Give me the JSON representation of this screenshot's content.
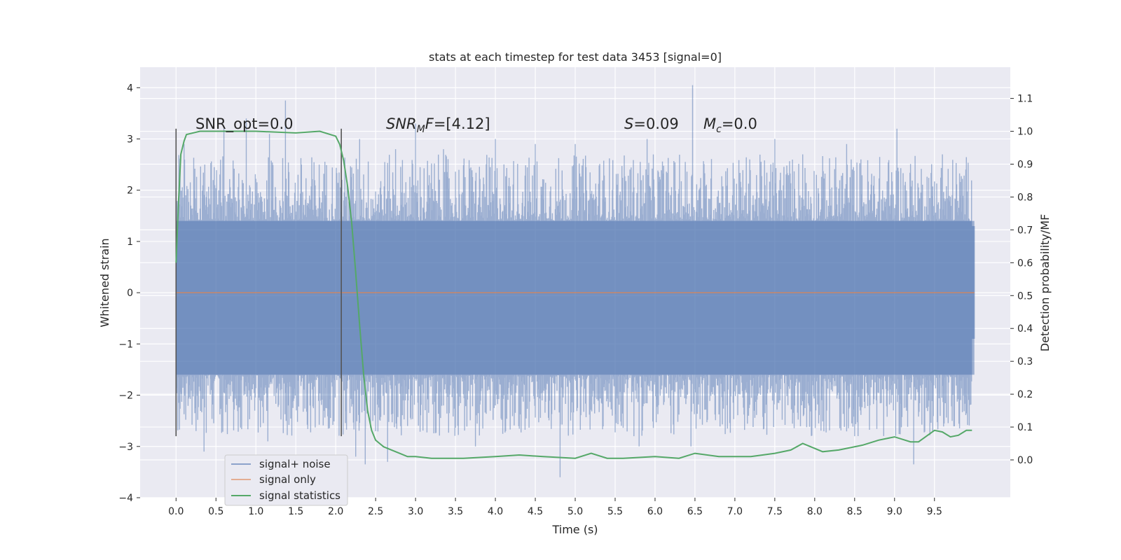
{
  "chart_data": {
    "type": "line",
    "title": "stats at each timestep for test data 3453 [signal=0]",
    "xlabel": "Time (s)",
    "ylabel": "Whitened strain",
    "y2label": "Detection probability/MF",
    "xlim": [
      -0.45,
      10.45
    ],
    "ylim": [
      -4,
      4.4
    ],
    "y2lim": [
      -0.115,
      1.195
    ],
    "x_ticks": [
      "0.0",
      "0.5",
      "1.0",
      "1.5",
      "2.0",
      "2.5",
      "3.0",
      "3.5",
      "4.0",
      "4.5",
      "5.0",
      "5.5",
      "6.0",
      "6.5",
      "7.0",
      "7.5",
      "8.0",
      "8.5",
      "9.0",
      "9.5"
    ],
    "x_tick_values": [
      0,
      0.5,
      1,
      1.5,
      2,
      2.5,
      3,
      3.5,
      4,
      4.5,
      5,
      5.5,
      6,
      6.5,
      7,
      7.5,
      8,
      8.5,
      9,
      9.5
    ],
    "y_ticks": [
      "−4",
      "−3",
      "−2",
      "−1",
      "0",
      "1",
      "2",
      "3",
      "4"
    ],
    "y_tick_values": [
      -4,
      -3,
      -2,
      -1,
      0,
      1,
      2,
      3,
      4
    ],
    "y2_ticks": [
      "0.0",
      "0.1",
      "0.2",
      "0.3",
      "0.4",
      "0.5",
      "0.6",
      "0.7",
      "0.8",
      "0.9",
      "1.0",
      "1.1"
    ],
    "y2_tick_values": [
      0,
      0.1,
      0.2,
      0.3,
      0.4,
      0.5,
      0.6,
      0.7,
      0.8,
      0.9,
      1.0,
      1.1
    ],
    "grid": true,
    "legend_position": "lower-left",
    "colors": {
      "noise": "#4c72b0",
      "signal": "#dd8452",
      "statistics": "#55a868",
      "markers": "#555555",
      "background": "#eaeaf2",
      "grid": "#ffffff"
    },
    "series": [
      {
        "name": "signal+ noise",
        "axis": "left",
        "kind": "noise-band",
        "x_range": [
          0,
          10
        ],
        "core_range": [
          -1.6,
          1.4
        ],
        "peaks": [
          {
            "x": 0.0,
            "y": 1.5
          },
          {
            "x": 0.1,
            "y": 2.9
          },
          {
            "x": 0.36,
            "y": 2.5
          },
          {
            "x": 0.6,
            "y": 3.2
          },
          {
            "x": 0.88,
            "y": 3.4
          },
          {
            "x": 1.17,
            "y": 3.1
          },
          {
            "x": 1.37,
            "y": 3.75
          },
          {
            "x": 1.7,
            "y": 2.6
          },
          {
            "x": 2.3,
            "y": 3.0
          },
          {
            "x": 2.75,
            "y": 2.8
          },
          {
            "x": 3.0,
            "y": 3.3
          },
          {
            "x": 3.35,
            "y": 2.8
          },
          {
            "x": 4.0,
            "y": 3.0
          },
          {
            "x": 4.5,
            "y": 2.9
          },
          {
            "x": 5.0,
            "y": 2.9
          },
          {
            "x": 5.9,
            "y": 3.0
          },
          {
            "x": 6.47,
            "y": 4.05
          },
          {
            "x": 7.5,
            "y": 3.0
          },
          {
            "x": 7.85,
            "y": 2.7
          },
          {
            "x": 8.4,
            "y": 2.9
          },
          {
            "x": 9.03,
            "y": 3.2
          },
          {
            "x": 9.6,
            "y": 2.7
          },
          {
            "x": 9.97,
            "y": 1.3
          }
        ],
        "troughs": [
          {
            "x": 0.0,
            "y": -0.8
          },
          {
            "x": 0.35,
            "y": -3.1
          },
          {
            "x": 1.15,
            "y": -2.9
          },
          {
            "x": 2.25,
            "y": -3.2
          },
          {
            "x": 2.37,
            "y": -3.35
          },
          {
            "x": 2.65,
            "y": -3.3
          },
          {
            "x": 3.75,
            "y": -3.0
          },
          {
            "x": 4.81,
            "y": -3.6
          },
          {
            "x": 5.8,
            "y": -3.0
          },
          {
            "x": 6.45,
            "y": -3.0
          },
          {
            "x": 8.5,
            "y": -2.8
          },
          {
            "x": 9.24,
            "y": -3.35
          },
          {
            "x": 9.97,
            "y": -0.9
          }
        ]
      },
      {
        "name": "signal only",
        "axis": "left",
        "x": [
          0,
          10
        ],
        "y": [
          0,
          0
        ]
      },
      {
        "name": "signal statistics",
        "axis": "right",
        "x": [
          0.0,
          0.03,
          0.06,
          0.1,
          0.13,
          0.3,
          0.6,
          1.0,
          1.5,
          1.8,
          2.0,
          2.05,
          2.1,
          2.15,
          2.2,
          2.25,
          2.3,
          2.35,
          2.4,
          2.45,
          2.5,
          2.55,
          2.6,
          2.7,
          2.8,
          2.9,
          3.0,
          3.2,
          3.6,
          4.0,
          4.3,
          4.6,
          5.0,
          5.2,
          5.4,
          5.6,
          6.0,
          6.3,
          6.5,
          6.8,
          7.2,
          7.5,
          7.7,
          7.85,
          7.95,
          8.1,
          8.3,
          8.6,
          8.8,
          9.0,
          9.2,
          9.3,
          9.5,
          9.6,
          9.7,
          9.8,
          9.9,
          9.97
        ],
        "y": [
          0.6,
          0.78,
          0.93,
          0.97,
          0.99,
          1.0,
          1.0,
          1.0,
          0.995,
          1.0,
          0.985,
          0.96,
          0.91,
          0.83,
          0.72,
          0.57,
          0.41,
          0.26,
          0.15,
          0.09,
          0.06,
          0.05,
          0.04,
          0.03,
          0.02,
          0.01,
          0.01,
          0.005,
          0.005,
          0.01,
          0.015,
          0.01,
          0.005,
          0.02,
          0.005,
          0.005,
          0.01,
          0.005,
          0.02,
          0.01,
          0.01,
          0.02,
          0.03,
          0.05,
          0.04,
          0.025,
          0.03,
          0.045,
          0.06,
          0.07,
          0.055,
          0.055,
          0.09,
          0.085,
          0.07,
          0.075,
          0.09,
          0.09
        ]
      }
    ],
    "vertical_markers": [
      {
        "x": 0.0,
        "ymin": -2.8,
        "ymax": 3.2
      },
      {
        "x": 2.07,
        "ymin": -2.8,
        "ymax": 3.2
      }
    ],
    "annotations": [
      {
        "text": "SNR_opt=0.0",
        "x": 0.2,
        "y": 3.2
      },
      {
        "text": "SNR_MF=[4.12]",
        "x": 2.6,
        "y": 3.2
      },
      {
        "text": "S=0.09",
        "x": 5.6,
        "y": 3.2
      },
      {
        "text": "M_c=0.0",
        "x": 6.6,
        "y": 3.2
      }
    ]
  }
}
